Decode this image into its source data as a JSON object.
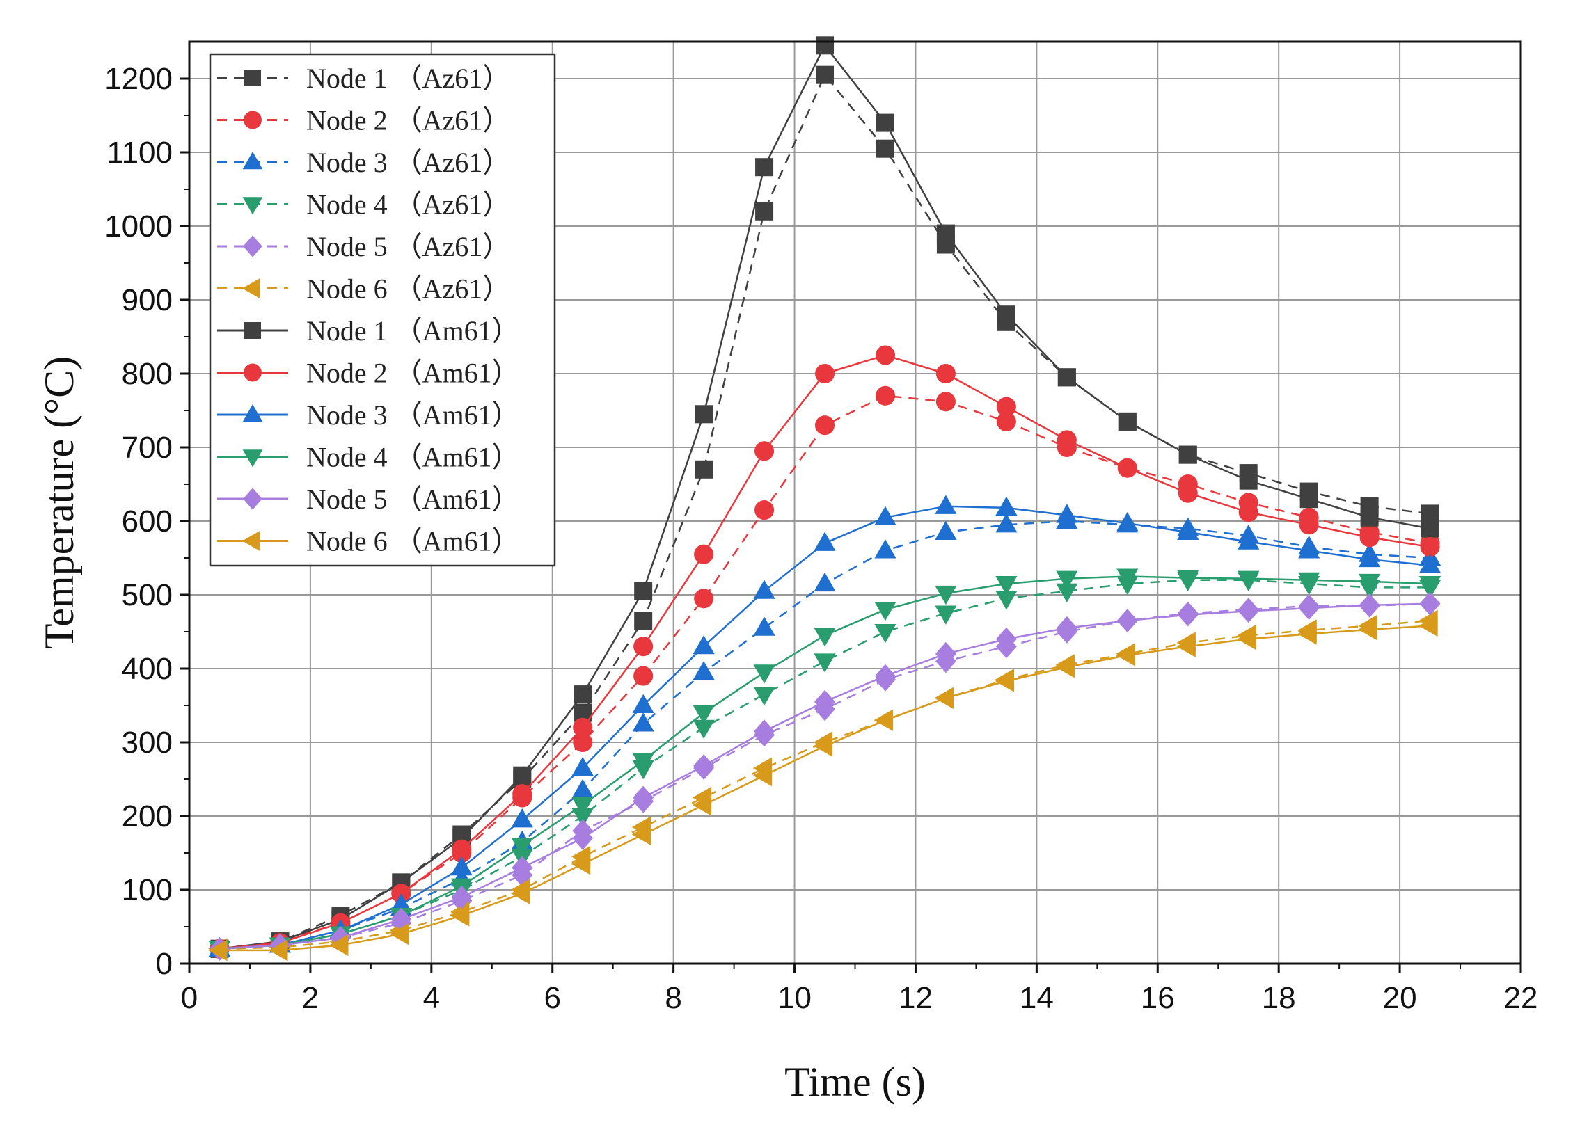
{
  "chart_data": {
    "type": "line",
    "title": "",
    "xlabel": "Time (s)",
    "ylabel": "Temperature (°C)",
    "xlim": [
      0,
      22
    ],
    "ylim": [
      0,
      1250
    ],
    "xticks": [
      "0",
      "2",
      "4",
      "6",
      "8",
      "10",
      "12",
      "14",
      "16",
      "18",
      "20",
      "22"
    ],
    "yticks": [
      "0",
      "100",
      "200",
      "300",
      "400",
      "500",
      "600",
      "700",
      "800",
      "900",
      "1000",
      "1100",
      "1200"
    ],
    "grid": true,
    "legend_position": "top-left",
    "x": [
      0.5,
      1.5,
      2.5,
      3.5,
      4.5,
      5.5,
      6.5,
      7.5,
      8.5,
      9.5,
      10.5,
      11.5,
      12.5,
      13.5,
      14.5,
      15.5,
      16.5,
      17.5,
      18.5,
      19.5,
      20.5
    ],
    "series": [
      {
        "name": "Node 1 （Az61）",
        "color": "#404040",
        "marker": "square",
        "dash": true,
        "values": [
          20,
          30,
          65,
          110,
          175,
          250,
          340,
          465,
          670,
          1020,
          1205,
          1105,
          975,
          870,
          795,
          735,
          690,
          665,
          640,
          620,
          610
        ]
      },
      {
        "name": "Node 2 （Az61）",
        "color": "#e8383d",
        "marker": "circle",
        "dash": true,
        "values": [
          20,
          30,
          55,
          95,
          150,
          225,
          300,
          390,
          495,
          615,
          730,
          770,
          762,
          735,
          700,
          672,
          650,
          625,
          605,
          585,
          570
        ]
      },
      {
        "name": "Node 3 （Az61）",
        "color": "#1f6fd1",
        "marker": "triangle-up",
        "dash": true,
        "values": [
          20,
          25,
          45,
          75,
          115,
          165,
          235,
          325,
          395,
          455,
          515,
          560,
          585,
          595,
          600,
          595,
          590,
          580,
          565,
          555,
          550
        ]
      },
      {
        "name": "Node 4 （Az61）",
        "color": "#2a9d6e",
        "marker": "triangle-down",
        "dash": true,
        "values": [
          20,
          25,
          40,
          65,
          100,
          145,
          200,
          265,
          320,
          365,
          410,
          450,
          475,
          495,
          505,
          515,
          520,
          520,
          515,
          510,
          510
        ]
      },
      {
        "name": "Node 5 （Az61）",
        "color": "#a77ee0",
        "marker": "diamond",
        "dash": true,
        "values": [
          20,
          25,
          35,
          55,
          85,
          120,
          180,
          220,
          265,
          310,
          345,
          385,
          410,
          430,
          450,
          465,
          475,
          480,
          485,
          485,
          488
        ]
      },
      {
        "name": "Node 6 （Az61）",
        "color": "#d79a1a",
        "marker": "triangle-left",
        "dash": true,
        "values": [
          20,
          22,
          30,
          45,
          70,
          100,
          145,
          185,
          225,
          265,
          300,
          330,
          360,
          385,
          405,
          420,
          435,
          445,
          452,
          458,
          465
        ]
      },
      {
        "name": "Node 1 （Am61）",
        "color": "#404040",
        "marker": "square",
        "dash": false,
        "values": [
          20,
          30,
          60,
          110,
          170,
          255,
          365,
          505,
          745,
          1080,
          1245,
          1140,
          990,
          880,
          795,
          735,
          690,
          655,
          630,
          605,
          590
        ]
      },
      {
        "name": "Node 2 （Am61）",
        "color": "#e8383d",
        "marker": "circle",
        "dash": false,
        "values": [
          20,
          28,
          55,
          95,
          155,
          230,
          320,
          430,
          555,
          695,
          800,
          825,
          800,
          755,
          710,
          672,
          638,
          612,
          595,
          578,
          565
        ]
      },
      {
        "name": "Node 3 （Am61）",
        "color": "#1f6fd1",
        "marker": "triangle-up",
        "dash": false,
        "values": [
          20,
          25,
          45,
          80,
          130,
          195,
          265,
          350,
          430,
          505,
          570,
          605,
          620,
          618,
          608,
          597,
          585,
          572,
          560,
          548,
          540
        ]
      },
      {
        "name": "Node 4 （Am61）",
        "color": "#2a9d6e",
        "marker": "triangle-down",
        "dash": false,
        "values": [
          20,
          25,
          40,
          65,
          105,
          160,
          215,
          275,
          340,
          395,
          445,
          480,
          502,
          515,
          522,
          525,
          523,
          522,
          520,
          518,
          515
        ]
      },
      {
        "name": "Node 5 （Am61）",
        "color": "#a77ee0",
        "marker": "diamond",
        "dash": false,
        "values": [
          20,
          25,
          35,
          60,
          90,
          130,
          170,
          225,
          268,
          315,
          355,
          390,
          420,
          440,
          455,
          465,
          473,
          478,
          482,
          486,
          488
        ]
      },
      {
        "name": "Node 6 （Am61）",
        "color": "#d79a1a",
        "marker": "triangle-left",
        "dash": false,
        "values": [
          18,
          18,
          25,
          40,
          65,
          95,
          135,
          175,
          215,
          255,
          295,
          330,
          360,
          383,
          402,
          418,
          430,
          440,
          447,
          453,
          458
        ]
      }
    ]
  }
}
